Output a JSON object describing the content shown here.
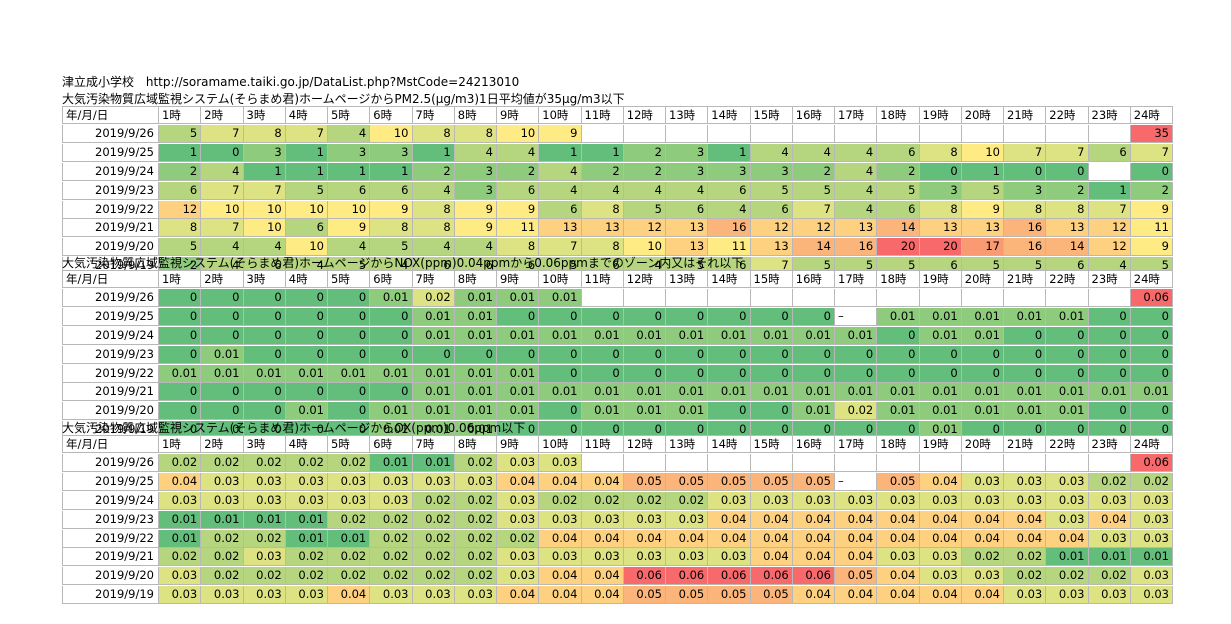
{
  "header": {
    "title": "津立成小学校",
    "url": "http://soramame.taiki.go.jp/DataList.php?MstCode=24213010"
  },
  "colors": {
    "dark_green": "#63be7b",
    "green": "#8fcb7d",
    "light_green": "#b5d67e",
    "yellow_green": "#dde283",
    "yellow": "#ffeb84",
    "light_orange": "#fdd17f",
    "orange": "#fbb479",
    "dark_orange": "#f99a73",
    "red": "#f8696b"
  },
  "sections": [
    {
      "title": "大気汚染物質広域監視システム(そらまめ君)ホームページからPM2.5(μg/m3)1日平均値が35μg/m3以下",
      "date_header": "年/月/日",
      "hours": [
        "1時",
        "2時",
        "3時",
        "4時",
        "5時",
        "6時",
        "7時",
        "8時",
        "9時",
        "10時",
        "11時",
        "12時",
        "13時",
        "14時",
        "15時",
        "16時",
        "17時",
        "18時",
        "19時",
        "20時",
        "21時",
        "22時",
        "23時",
        "24時"
      ],
      "rows": [
        {
          "date": "2019/9/26",
          "values": [
            "5",
            "7",
            "8",
            "7",
            "4",
            "10",
            "8",
            "8",
            "10",
            "9",
            "",
            "",
            "",
            "",
            "",
            "",
            "",
            "",
            "",
            "",
            "",
            "",
            "",
            "35"
          ]
        },
        {
          "date": "2019/9/25",
          "values": [
            "1",
            "0",
            "3",
            "1",
            "3",
            "3",
            "1",
            "4",
            "4",
            "1",
            "1",
            "2",
            "3",
            "1",
            "4",
            "4",
            "4",
            "6",
            "8",
            "10",
            "7",
            "7",
            "6",
            "7"
          ]
        },
        {
          "date": "2019/9/24",
          "values": [
            "2",
            "4",
            "1",
            "1",
            "1",
            "1",
            "2",
            "3",
            "2",
            "4",
            "2",
            "2",
            "3",
            "3",
            "3",
            "2",
            "4",
            "2",
            "0",
            "1",
            "0",
            "0",
            "",
            "0"
          ]
        },
        {
          "date": "2019/9/23",
          "values": [
            "6",
            "7",
            "7",
            "5",
            "6",
            "6",
            "4",
            "3",
            "6",
            "4",
            "4",
            "4",
            "4",
            "6",
            "5",
            "5",
            "4",
            "5",
            "3",
            "5",
            "3",
            "2",
            "1",
            "2"
          ]
        },
        {
          "date": "2019/9/22",
          "values": [
            "12",
            "10",
            "10",
            "10",
            "10",
            "9",
            "8",
            "9",
            "9",
            "6",
            "8",
            "5",
            "6",
            "4",
            "6",
            "7",
            "4",
            "6",
            "8",
            "9",
            "8",
            "8",
            "7",
            "9"
          ]
        },
        {
          "date": "2019/9/21",
          "values": [
            "8",
            "7",
            "10",
            "6",
            "9",
            "8",
            "8",
            "9",
            "11",
            "13",
            "13",
            "12",
            "13",
            "16",
            "12",
            "12",
            "13",
            "14",
            "13",
            "13",
            "16",
            "13",
            "12",
            "11"
          ]
        },
        {
          "date": "2019/9/20",
          "values": [
            "5",
            "4",
            "4",
            "10",
            "4",
            "5",
            "4",
            "4",
            "8",
            "7",
            "8",
            "10",
            "13",
            "11",
            "13",
            "14",
            "16",
            "20",
            "20",
            "17",
            "16",
            "14",
            "12",
            "9"
          ]
        },
        {
          "date": "2019/9/19",
          "values": [
            "2",
            "4",
            "6",
            "4",
            "5",
            "4",
            "6",
            "6",
            "6",
            "5",
            "6",
            "4",
            "5",
            "6",
            "7",
            "5",
            "5",
            "5",
            "6",
            "5",
            "5",
            "6",
            "4",
            "5"
          ]
        }
      ]
    },
    {
      "title": "大気汚染物質広域監視システム(そらまめ君)ホームページからNOX(ppm)0.04ppmから0.06ppmまでのゾーン内又はそれ以下",
      "date_header": "年/月/日",
      "hours": [
        "1時",
        "2時",
        "3時",
        "4時",
        "5時",
        "6時",
        "7時",
        "8時",
        "9時",
        "10時",
        "11時",
        "12時",
        "13時",
        "14時",
        "15時",
        "16時",
        "17時",
        "18時",
        "19時",
        "20時",
        "21時",
        "22時",
        "23時",
        "24時"
      ],
      "rows": [
        {
          "date": "2019/9/26",
          "values": [
            "0",
            "0",
            "0",
            "0",
            "0",
            "0.01",
            "0.02",
            "0.01",
            "0.01",
            "0.01",
            "",
            "",
            "",
            "",
            "",
            "",
            "",
            "",
            "",
            "",
            "",
            "",
            "",
            "0.06"
          ]
        },
        {
          "date": "2019/9/25",
          "values": [
            "0",
            "0",
            "0",
            "0",
            "0",
            "0",
            "0.01",
            "0.01",
            "0",
            "0",
            "0",
            "0",
            "0",
            "0",
            "0",
            "0",
            "–",
            "0.01",
            "0.01",
            "0.01",
            "0.01",
            "0.01",
            "0",
            "0"
          ]
        },
        {
          "date": "2019/9/24",
          "values": [
            "0",
            "0",
            "0",
            "0",
            "0",
            "0",
            "0.01",
            "0.01",
            "0.01",
            "0.01",
            "0.01",
            "0.01",
            "0.01",
            "0.01",
            "0.01",
            "0.01",
            "0.01",
            "0",
            "0.01",
            "0.01",
            "0",
            "0",
            "0",
            "0"
          ]
        },
        {
          "date": "2019/9/23",
          "values": [
            "0",
            "0.01",
            "0",
            "0",
            "0",
            "0",
            "0",
            "0",
            "0",
            "0",
            "0",
            "0",
            "0",
            "0",
            "0",
            "0",
            "0",
            "0",
            "0",
            "0",
            "0",
            "0",
            "0",
            "0"
          ]
        },
        {
          "date": "2019/9/22",
          "values": [
            "0.01",
            "0.01",
            "0.01",
            "0.01",
            "0.01",
            "0.01",
            "0.01",
            "0.01",
            "0.01",
            "0",
            "0",
            "0",
            "0",
            "0",
            "0",
            "0",
            "0",
            "0",
            "0",
            "0",
            "0",
            "0",
            "0",
            "0"
          ]
        },
        {
          "date": "2019/9/21",
          "values": [
            "0",
            "0",
            "0",
            "0",
            "0",
            "0",
            "0.01",
            "0.01",
            "0.01",
            "0.01",
            "0.01",
            "0.01",
            "0.01",
            "0.01",
            "0.01",
            "0.01",
            "0.01",
            "0.01",
            "0.01",
            "0.01",
            "0.01",
            "0.01",
            "0.01",
            "0.01"
          ]
        },
        {
          "date": "2019/9/20",
          "values": [
            "0",
            "0",
            "0",
            "0.01",
            "0",
            "0.01",
            "0.01",
            "0.01",
            "0.01",
            "0",
            "0.01",
            "0.01",
            "0.01",
            "0",
            "0",
            "0.01",
            "0.02",
            "0.01",
            "0.01",
            "0.01",
            "0.01",
            "0.01",
            "0",
            "0"
          ]
        },
        {
          "date": "2019/9/19",
          "values": [
            "0",
            "0",
            "0",
            "0",
            "0",
            "0.01",
            "0.01",
            "0.01",
            "0",
            "0",
            "0",
            "0",
            "0",
            "0",
            "0",
            "0",
            "0",
            "0",
            "0.01",
            "0",
            "0",
            "0",
            "0",
            "0"
          ]
        }
      ]
    },
    {
      "title": "大気汚染物質広域監視システム(そらまめ君)ホームページからOX(ppm)0.06ppm以下",
      "date_header": "年/月/日",
      "hours": [
        "1時",
        "2時",
        "3時",
        "4時",
        "5時",
        "6時",
        "7時",
        "8時",
        "9時",
        "10時",
        "11時",
        "12時",
        "13時",
        "14時",
        "15時",
        "16時",
        "17時",
        "18時",
        "19時",
        "20時",
        "21時",
        "22時",
        "23時",
        "24時"
      ],
      "rows": [
        {
          "date": "2019/9/26",
          "values": [
            "0.02",
            "0.02",
            "0.02",
            "0.02",
            "0.02",
            "0.01",
            "0.01",
            "0.02",
            "0.03",
            "0.03",
            "",
            "",
            "",
            "",
            "",
            "",
            "",
            "",
            "",
            "",
            "",
            "",
            "",
            "0.06"
          ]
        },
        {
          "date": "2019/9/25",
          "values": [
            "0.04",
            "0.03",
            "0.03",
            "0.03",
            "0.03",
            "0.03",
            "0.03",
            "0.03",
            "0.04",
            "0.04",
            "0.04",
            "0.05",
            "0.05",
            "0.05",
            "0.05",
            "0.05",
            "–",
            "0.05",
            "0.04",
            "0.03",
            "0.03",
            "0.03",
            "0.02",
            "0.02"
          ]
        },
        {
          "date": "2019/9/24",
          "values": [
            "0.03",
            "0.03",
            "0.03",
            "0.03",
            "0.03",
            "0.03",
            "0.02",
            "0.02",
            "0.03",
            "0.02",
            "0.02",
            "0.02",
            "0.02",
            "0.03",
            "0.03",
            "0.03",
            "0.03",
            "0.03",
            "0.03",
            "0.03",
            "0.03",
            "0.03",
            "0.03",
            "0.03"
          ]
        },
        {
          "date": "2019/9/23",
          "values": [
            "0.01",
            "0.01",
            "0.01",
            "0.01",
            "0.02",
            "0.02",
            "0.02",
            "0.02",
            "0.03",
            "0.03",
            "0.03",
            "0.03",
            "0.03",
            "0.04",
            "0.04",
            "0.04",
            "0.04",
            "0.04",
            "0.04",
            "0.04",
            "0.04",
            "0.03",
            "0.04",
            "0.03"
          ]
        },
        {
          "date": "2019/9/22",
          "values": [
            "0.01",
            "0.02",
            "0.02",
            "0.01",
            "0.01",
            "0.02",
            "0.02",
            "0.02",
            "0.02",
            "0.04",
            "0.04",
            "0.04",
            "0.04",
            "0.04",
            "0.04",
            "0.04",
            "0.04",
            "0.04",
            "0.04",
            "0.04",
            "0.04",
            "0.04",
            "0.03",
            "0.03"
          ]
        },
        {
          "date": "2019/9/21",
          "values": [
            "0.02",
            "0.02",
            "0.03",
            "0.02",
            "0.02",
            "0.02",
            "0.02",
            "0.02",
            "0.03",
            "0.03",
            "0.03",
            "0.03",
            "0.03",
            "0.03",
            "0.04",
            "0.04",
            "0.04",
            "0.03",
            "0.03",
            "0.02",
            "0.02",
            "0.01",
            "0.01",
            "0.01"
          ]
        },
        {
          "date": "2019/9/20",
          "values": [
            "0.03",
            "0.02",
            "0.02",
            "0.02",
            "0.02",
            "0.02",
            "0.02",
            "0.02",
            "0.03",
            "0.04",
            "0.04",
            "0.06",
            "0.06",
            "0.06",
            "0.06",
            "0.06",
            "0.05",
            "0.04",
            "0.03",
            "0.03",
            "0.02",
            "0.02",
            "0.02",
            "0.03"
          ]
        },
        {
          "date": "2019/9/19",
          "values": [
            "0.03",
            "0.03",
            "0.03",
            "0.03",
            "0.04",
            "0.03",
            "0.03",
            "0.03",
            "0.04",
            "0.04",
            "0.04",
            "0.05",
            "0.05",
            "0.05",
            "0.05",
            "0.04",
            "0.04",
            "0.04",
            "0.04",
            "0.04",
            "0.03",
            "0.03",
            "0.03",
            "0.03"
          ]
        }
      ]
    }
  ]
}
